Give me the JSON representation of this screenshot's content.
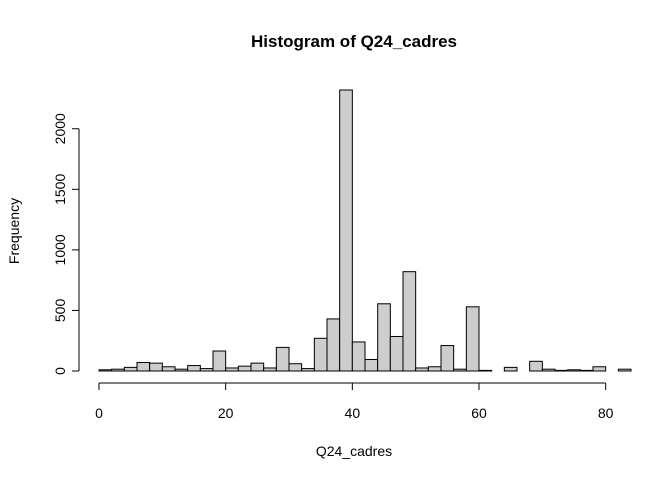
{
  "chart_data": {
    "type": "bar",
    "title": "Histogram of Q24_cadres",
    "xlabel": "Q24_cadres",
    "ylabel": "Frequency",
    "bin_width": 2,
    "x_start": 0,
    "values": [
      10,
      15,
      30,
      70,
      65,
      35,
      15,
      45,
      20,
      165,
      25,
      40,
      65,
      25,
      195,
      60,
      20,
      270,
      430,
      2320,
      240,
      95,
      555,
      285,
      820,
      25,
      35,
      210,
      15,
      530,
      5,
      0,
      30,
      0,
      80,
      15,
      5,
      10,
      5,
      35,
      0,
      15
    ],
    "xlim": [
      0,
      84
    ],
    "ylim": [
      0,
      2320
    ],
    "x_ticks": [
      0,
      20,
      40,
      60,
      80
    ],
    "x_tick_labels": [
      "0",
      "20",
      "40",
      "60",
      "80"
    ],
    "y_ticks": [
      0,
      500,
      1000,
      1500,
      2000
    ],
    "y_tick_labels": [
      "0",
      "500",
      "1000",
      "1500",
      "2000"
    ],
    "grid": false,
    "colors": {
      "bar_fill": "#cdcdcd",
      "bar_stroke": "#000000"
    }
  }
}
